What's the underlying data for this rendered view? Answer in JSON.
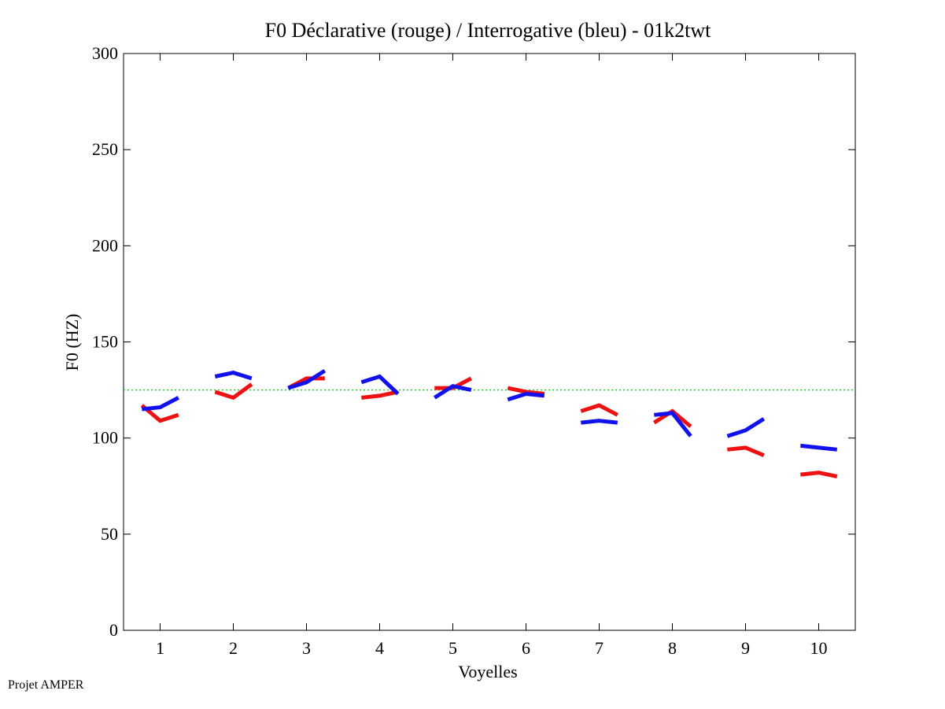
{
  "footer": "Projet AMPER",
  "chart_data": {
    "type": "line",
    "title": "F0 Déclarative (rouge) / Interrogative (bleu) - 01k2twt",
    "xlabel": "Voyelles",
    "ylabel": "F0 (HZ)",
    "xlim": [
      0.5,
      10.5
    ],
    "ylim": [
      0,
      300
    ],
    "xticks": [
      1,
      2,
      3,
      4,
      5,
      6,
      7,
      8,
      9,
      10
    ],
    "yticks": [
      0,
      50,
      100,
      150,
      200,
      250,
      300
    ],
    "grid": false,
    "reference_line": {
      "y": 125,
      "color": "#33cc33",
      "style": "dotted"
    },
    "series": [
      {
        "color": "#ee1111",
        "segments": [
          {
            "x": [
              0.75,
              1.0,
              1.25
            ],
            "y": [
              117,
              109,
              112
            ]
          },
          {
            "x": [
              1.75,
              2.0,
              2.25
            ],
            "y": [
              124,
              121,
              128
            ]
          },
          {
            "x": [
              2.75,
              3.0,
              3.25
            ],
            "y": [
              126,
              131,
              131
            ]
          },
          {
            "x": [
              3.75,
              4.0,
              4.25
            ],
            "y": [
              121,
              122,
              124
            ]
          },
          {
            "x": [
              4.75,
              5.0,
              5.25
            ],
            "y": [
              126,
              126,
              131
            ]
          },
          {
            "x": [
              5.75,
              6.0,
              6.25
            ],
            "y": [
              126,
              124,
              123
            ]
          },
          {
            "x": [
              6.75,
              7.0,
              7.25
            ],
            "y": [
              114,
              117,
              112
            ]
          },
          {
            "x": [
              7.75,
              8.0,
              8.25
            ],
            "y": [
              108,
              114,
              106
            ]
          },
          {
            "x": [
              8.75,
              9.0,
              9.25
            ],
            "y": [
              94,
              95,
              91
            ]
          },
          {
            "x": [
              9.75,
              10.0,
              10.25
            ],
            "y": [
              81,
              82,
              80
            ]
          }
        ]
      },
      {
        "color": "#1111ee",
        "segments": [
          {
            "x": [
              0.75,
              1.0,
              1.25
            ],
            "y": [
              115,
              116,
              121
            ]
          },
          {
            "x": [
              1.75,
              2.0,
              2.25
            ],
            "y": [
              132,
              134,
              131
            ]
          },
          {
            "x": [
              2.75,
              3.0,
              3.25
            ],
            "y": [
              126,
              129,
              135
            ]
          },
          {
            "x": [
              3.75,
              4.0,
              4.25
            ],
            "y": [
              129,
              132,
              123
            ]
          },
          {
            "x": [
              4.75,
              5.0,
              5.25
            ],
            "y": [
              121,
              127,
              125
            ]
          },
          {
            "x": [
              5.75,
              6.0,
              6.25
            ],
            "y": [
              120,
              123,
              122
            ]
          },
          {
            "x": [
              6.75,
              7.0,
              7.25
            ],
            "y": [
              108,
              109,
              108
            ]
          },
          {
            "x": [
              7.75,
              8.0,
              8.25
            ],
            "y": [
              112,
              113,
              101
            ]
          },
          {
            "x": [
              8.75,
              9.0,
              9.25
            ],
            "y": [
              101,
              104,
              110
            ]
          },
          {
            "x": [
              9.75,
              10.0,
              10.25
            ],
            "y": [
              96,
              95,
              94
            ]
          }
        ]
      }
    ]
  }
}
